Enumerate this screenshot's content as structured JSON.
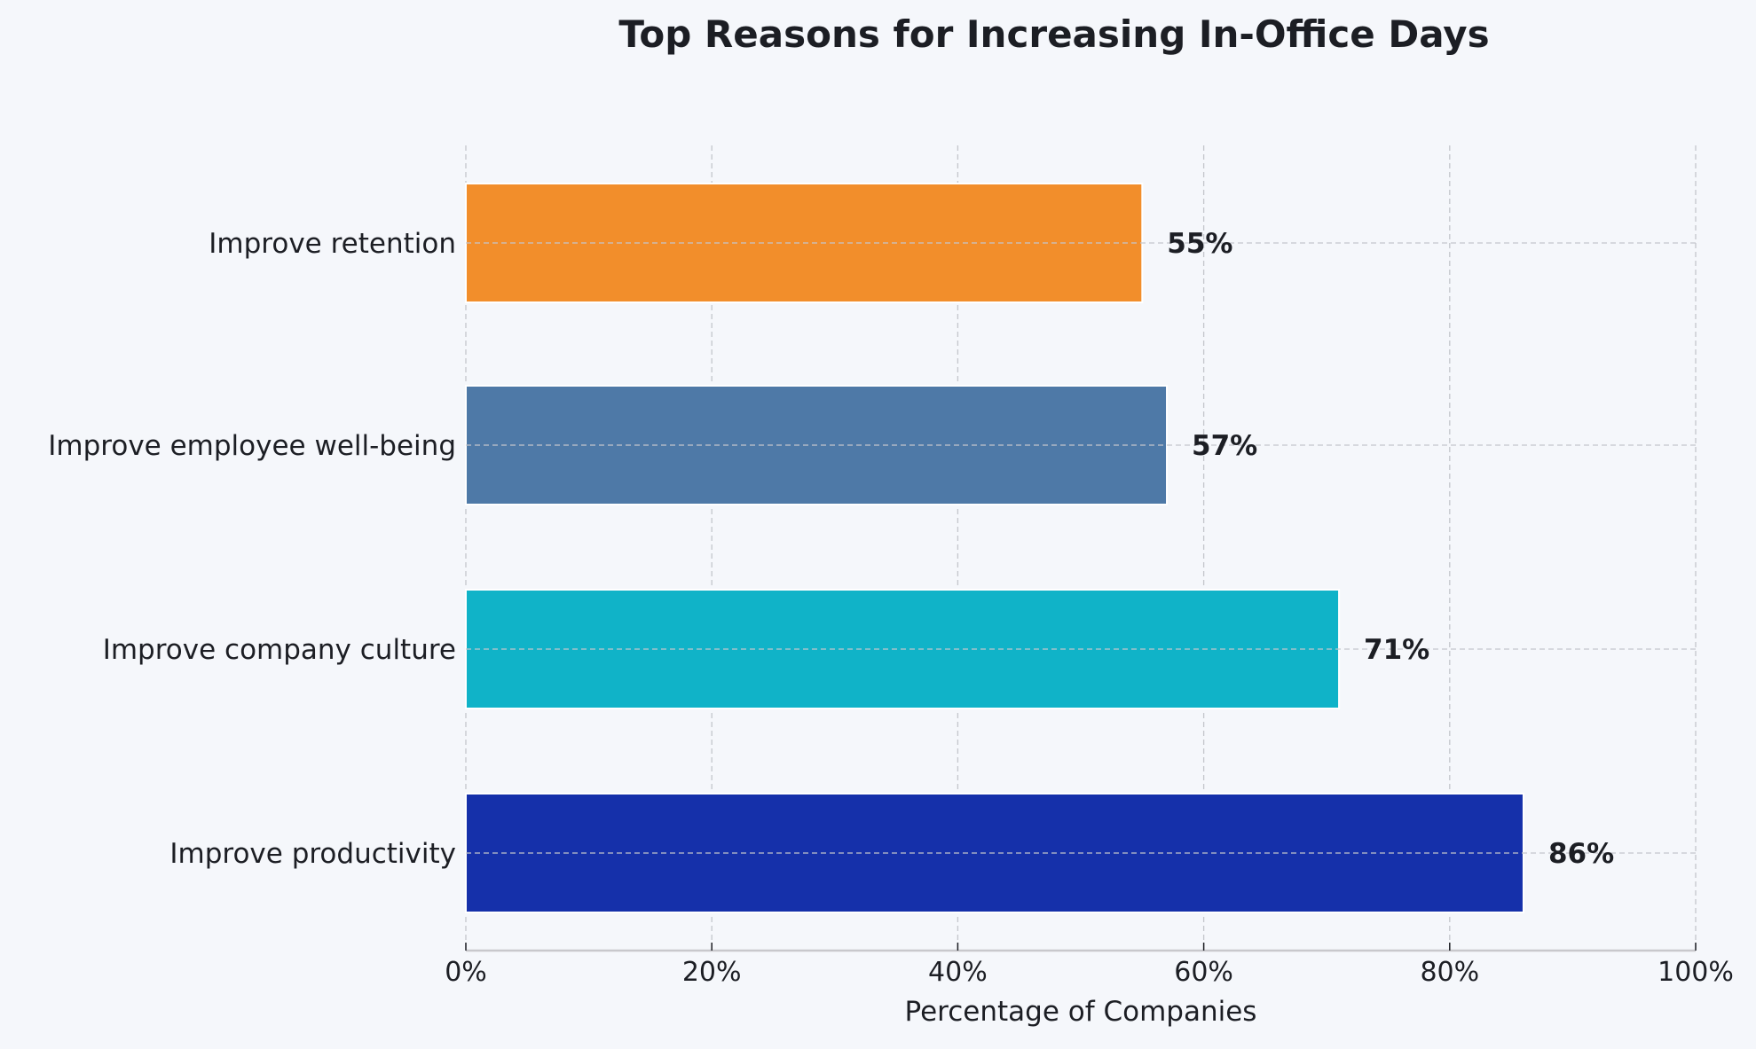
{
  "chart_data": {
    "type": "bar",
    "orientation": "horizontal",
    "title": "Top Reasons for Increasing In-Office Days",
    "xlabel": "Percentage of Companies",
    "ylabel": "",
    "xlim": [
      0,
      100
    ],
    "x_ticks": [
      "0%",
      "20%",
      "40%",
      "60%",
      "80%",
      "100%"
    ],
    "x_tick_values": [
      0,
      20,
      40,
      60,
      80,
      100
    ],
    "grid": true,
    "categories": [
      "Improve productivity",
      "Improve company culture",
      "Improve employee well-being",
      "Improve retention"
    ],
    "values": [
      86,
      71,
      57,
      55
    ],
    "value_labels": [
      "86%",
      "71%",
      "57%",
      "55%"
    ],
    "colors": [
      "#1530aa",
      "#10b3c8",
      "#4e79a7",
      "#f28e2b"
    ],
    "background": "#f5f7fb"
  }
}
